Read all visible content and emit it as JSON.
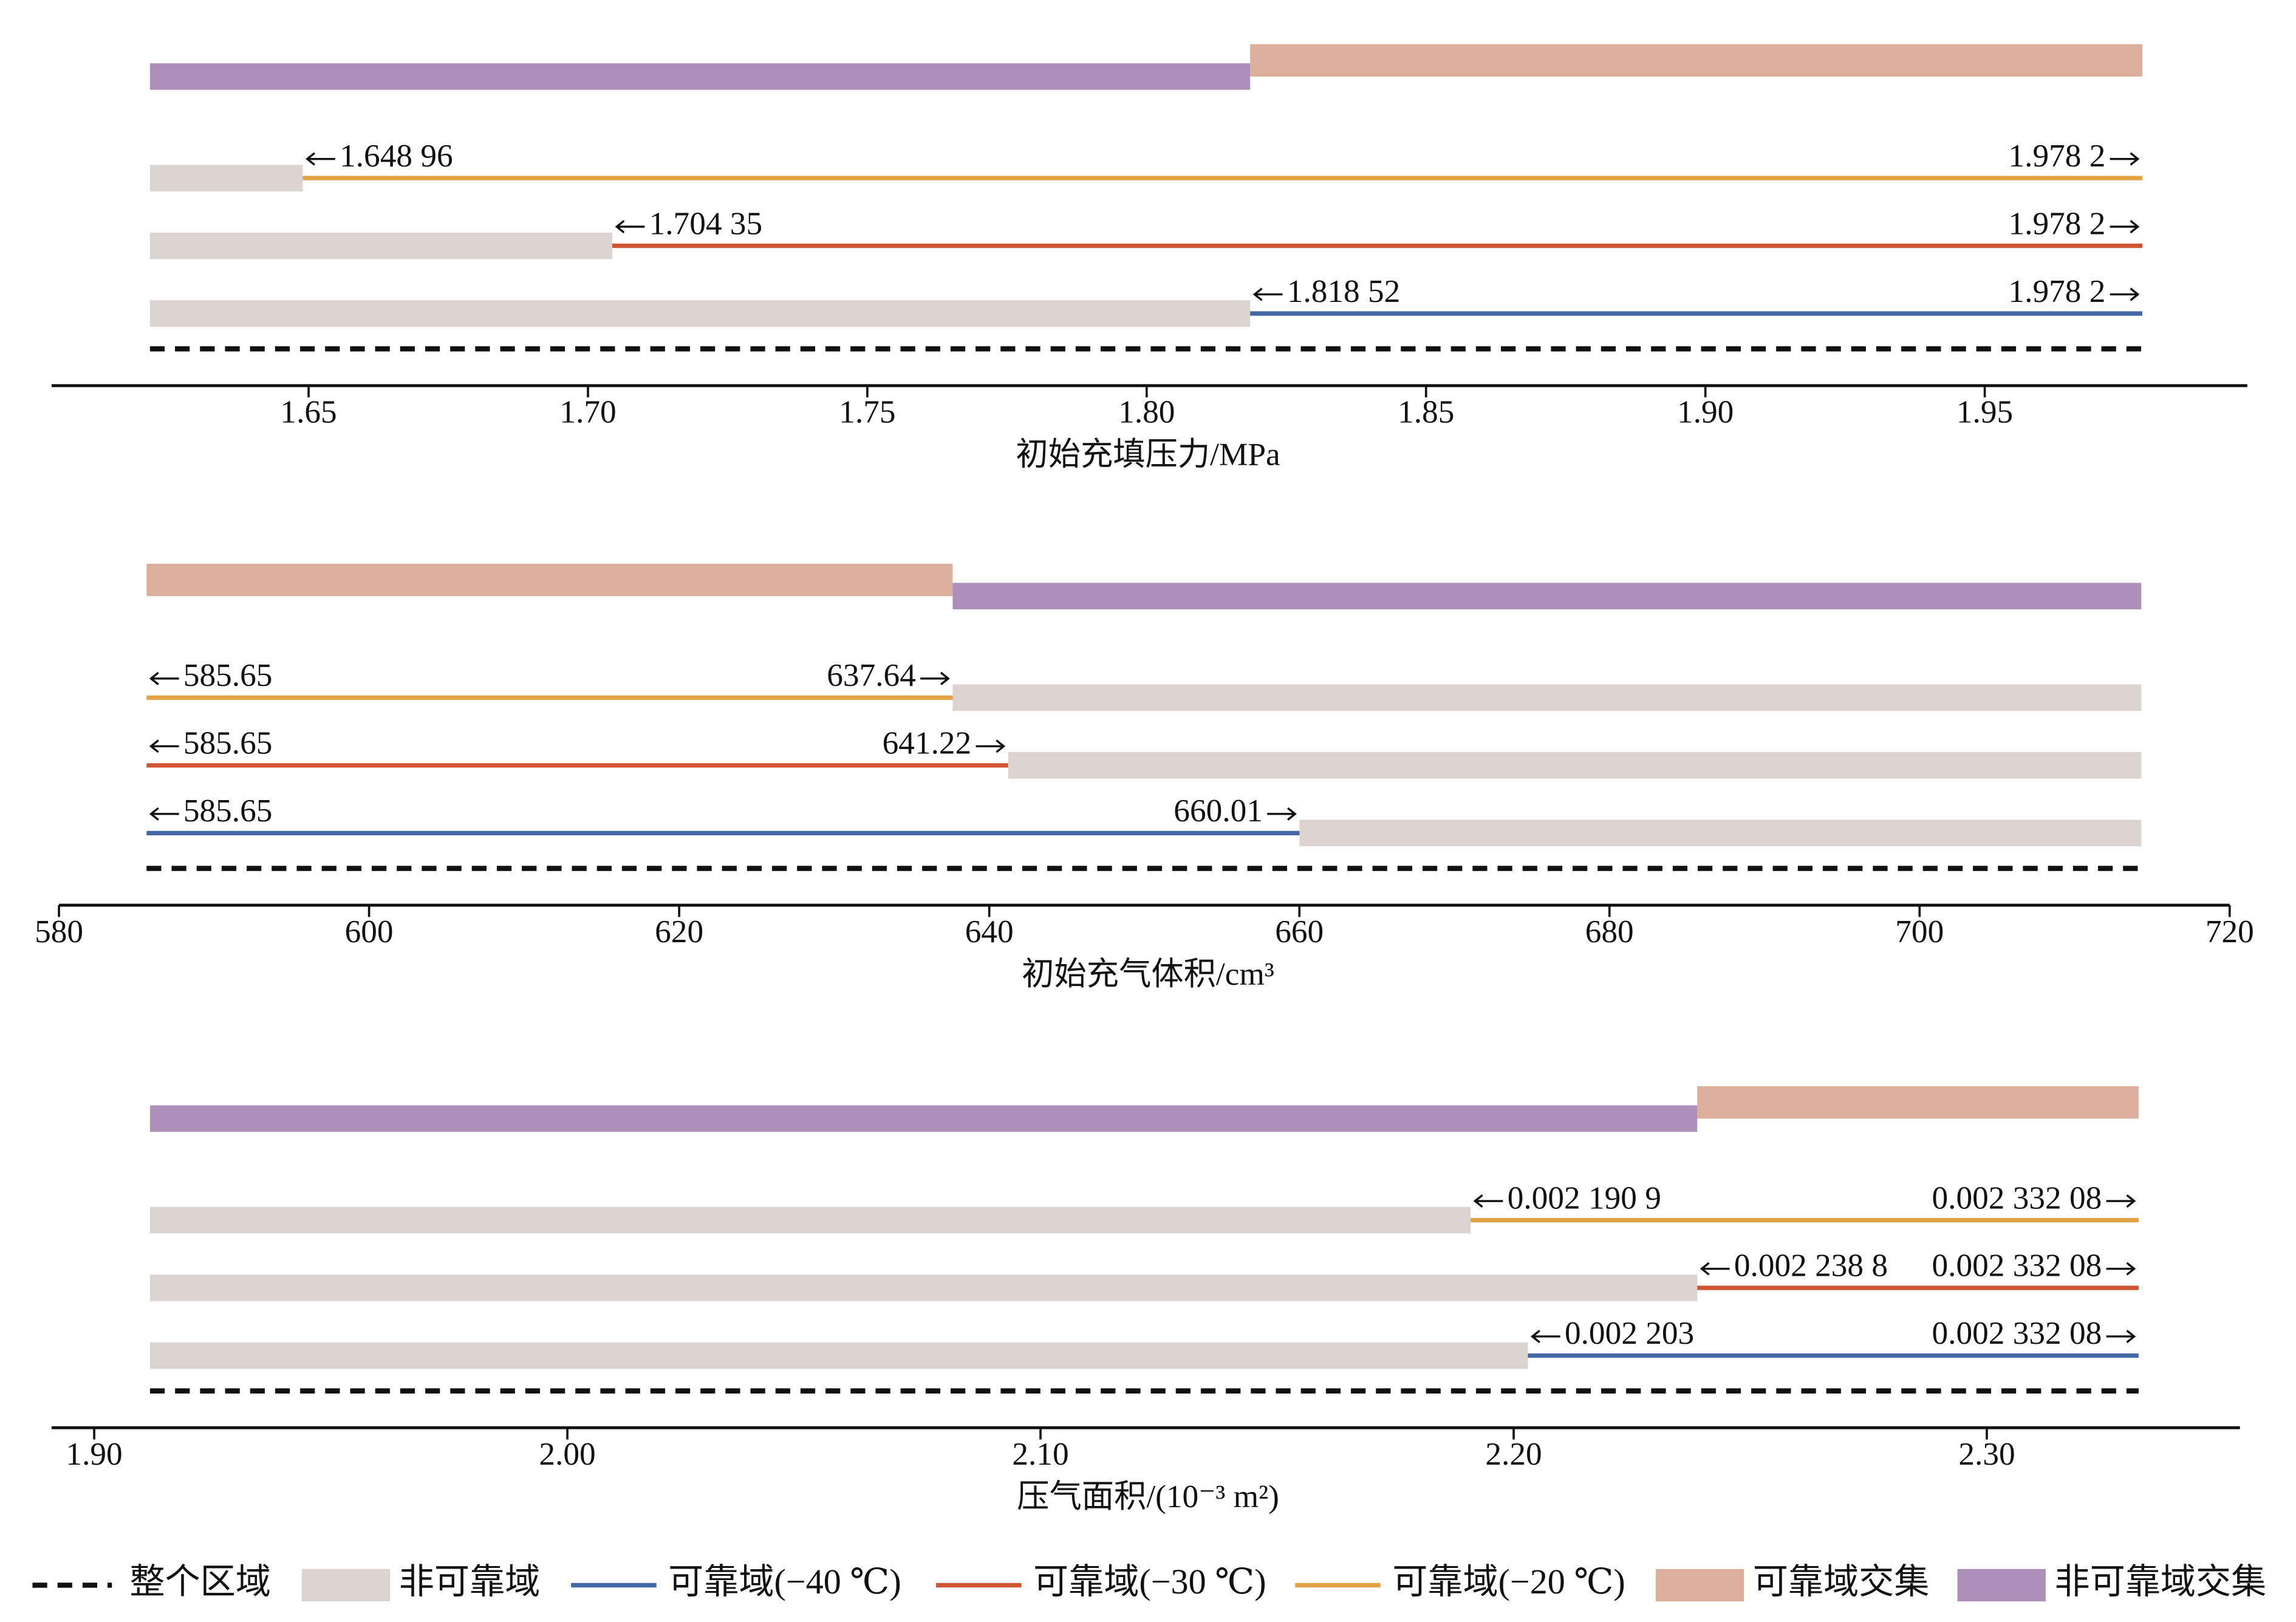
{
  "chart_data": [
    {
      "type": "range",
      "xlabel": "初始充填压力/MPa",
      "xlim": [
        1.604,
        1.997
      ],
      "xticks": [
        1.65,
        {
          "value": 1.7,
          "label": "1.70"
        },
        1.75,
        {
          "value": 1.8,
          "label": "1.80"
        },
        1.85,
        {
          "value": 1.9,
          "label": "1.90"
        },
        1.95
      ],
      "extent": [
        1.6216,
        1.9782
      ],
      "reliable_intersection": [
        1.81852,
        1.9782
      ],
      "nonreliable_intersection": [
        1.6216,
        1.81852
      ],
      "series": [
        {
          "name": "可靠域(−20 ℃)",
          "color": "#e3a243",
          "values": [
            1.64896,
            1.9782
          ],
          "value_labels": [
            "1.648 96",
            "1.978 2"
          ]
        },
        {
          "name": "可靠域(−30 ℃)",
          "color": "#cf5533",
          "values": [
            1.70435,
            1.9782
          ],
          "value_labels": [
            "1.704 35",
            "1.978 2"
          ]
        },
        {
          "name": "可靠域(−40 ℃)",
          "color": "#4467a6",
          "values": [
            1.81852,
            1.9782
          ],
          "value_labels": [
            "1.818 52",
            "1.978 2"
          ]
        }
      ]
    },
    {
      "type": "range",
      "xlabel": "初始充气体积/cm³",
      "xlim": [
        580,
        720
      ],
      "xticks": [
        580,
        600,
        620,
        640,
        660,
        680,
        700,
        720
      ],
      "extent": [
        585.65,
        714.3
      ],
      "reliable_intersection": [
        585.65,
        637.64
      ],
      "nonreliable_intersection": [
        637.64,
        714.3
      ],
      "series": [
        {
          "name": "可靠域(−20 ℃)",
          "color": "#e3a243",
          "values": [
            585.65,
            637.64
          ]
        },
        {
          "name": "可靠域(−30 ℃)",
          "color": "#cf5533",
          "values": [
            585.65,
            641.22
          ]
        },
        {
          "name": "可靠域(−40 ℃)",
          "color": "#4467a6",
          "values": [
            585.65,
            660.01
          ]
        }
      ]
    },
    {
      "type": "range",
      "xlabel": "压气面积/(10⁻³ m²)",
      "xlim": [
        1.891,
        2.3535
      ],
      "xticks": [
        {
          "value": 1.9,
          "label": "1.90"
        },
        {
          "value": 2.0,
          "label": "2.00"
        },
        {
          "value": 2.1,
          "label": "2.10"
        },
        {
          "value": 2.2,
          "label": "2.20"
        },
        {
          "value": 2.3,
          "label": "2.30"
        }
      ],
      "extent": [
        1.9118,
        2.33208
      ],
      "reliable_intersection": [
        2.2388,
        2.33208
      ],
      "nonreliable_intersection": [
        1.9118,
        2.2388
      ],
      "series": [
        {
          "name": "可靠域(−20 ℃)",
          "color": "#e3a243",
          "values": [
            2.1909,
            2.33208
          ],
          "value_labels": [
            "0.002 190 9",
            "0.002 332 08"
          ]
        },
        {
          "name": "可靠域(−30 ℃)",
          "color": "#cf5533",
          "values": [
            2.2388,
            2.33208
          ],
          "value_labels": [
            "0.002 238 8",
            "0.002 332 08"
          ]
        },
        {
          "name": "可靠域(−40 ℃)",
          "color": "#4467a6",
          "values": [
            2.203,
            2.33208
          ],
          "value_labels": [
            "0.002 203",
            "0.002 332 08"
          ]
        }
      ]
    }
  ],
  "legend": [
    {
      "name": "整个区域",
      "color": "#111111",
      "style": "dashed"
    },
    {
      "name": "非可靠域",
      "color": "#dbd3d0",
      "style": "bar"
    },
    {
      "name": "可靠域(−40 ℃)",
      "color": "#4467a6",
      "style": "line"
    },
    {
      "name": "可靠域(−30 ℃)",
      "color": "#cf5533",
      "style": "line"
    },
    {
      "name": "可靠域(−20 ℃)",
      "color": "#e3a243",
      "style": "line"
    },
    {
      "name": "可靠域交集",
      "color": "#dbaf9c",
      "style": "bar"
    },
    {
      "name": "非可靠域交集",
      "color": "#ad8fba",
      "style": "bar"
    }
  ]
}
